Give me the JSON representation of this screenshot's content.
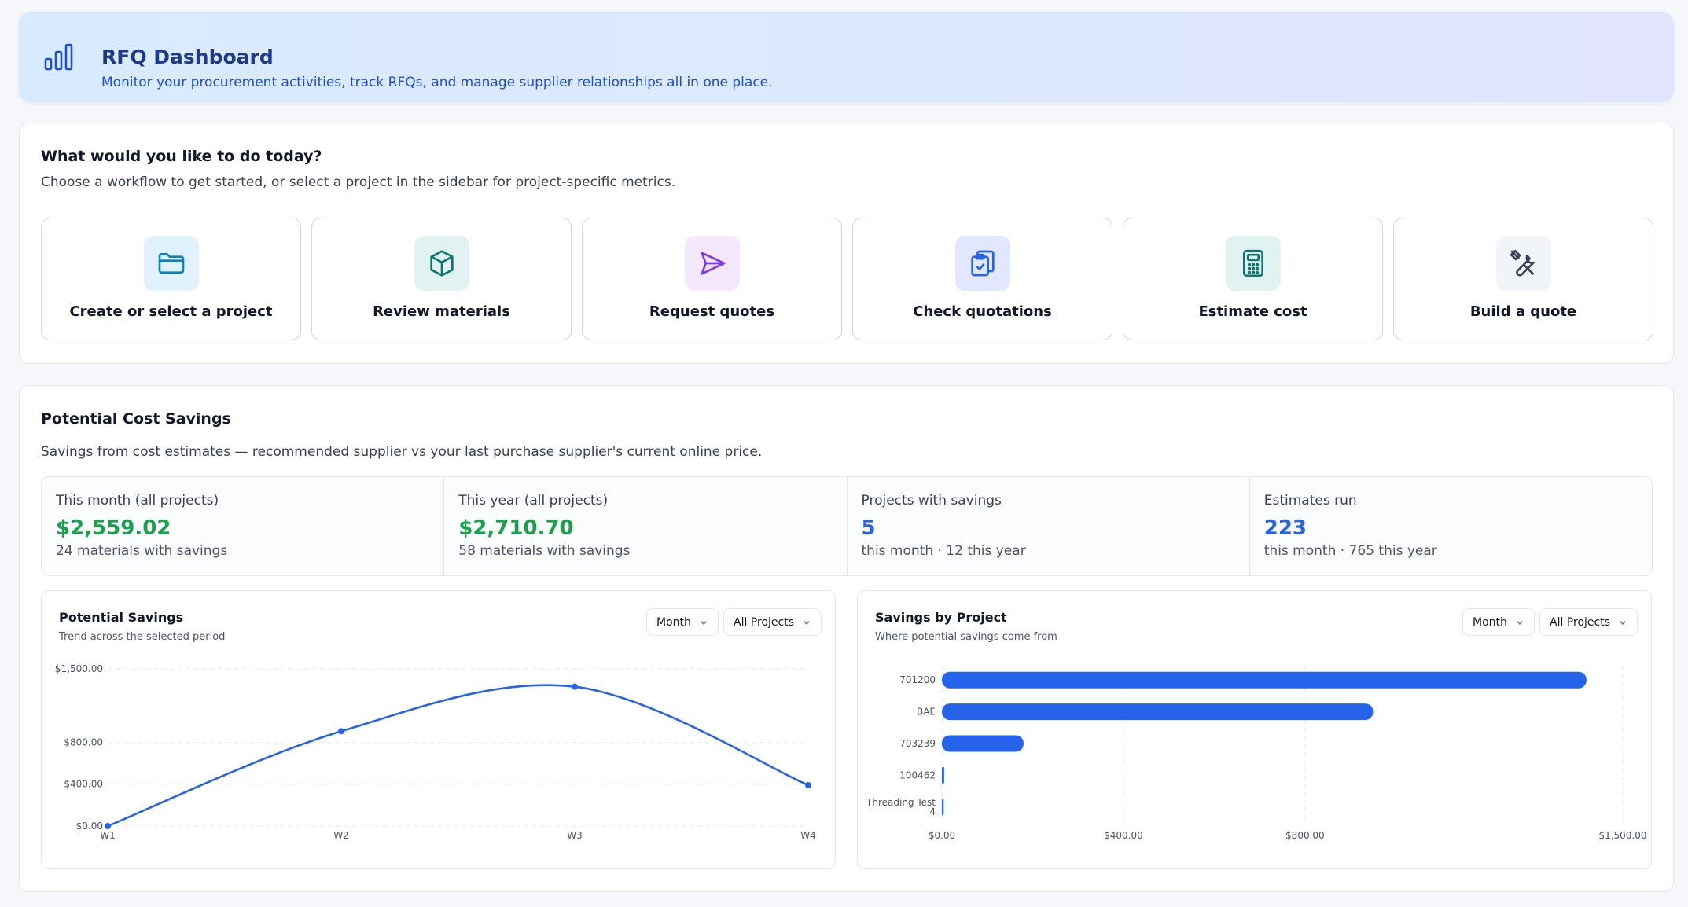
{
  "header": {
    "title": "RFQ Dashboard",
    "subtitle": "Monitor your procurement activities, track RFQs, and manage supplier relationships all in one place."
  },
  "workflow": {
    "heading": "What would you like to do today?",
    "description": "Choose a workflow to get started, or select a project in the sidebar for project-specific metrics.",
    "cards": [
      {
        "label": "Create or select a project",
        "icon": "folder-icon",
        "color": "#0284c7",
        "bg": "#e0f2fe"
      },
      {
        "label": "Review materials",
        "icon": "box-icon",
        "color": "#0f766e",
        "bg": "#e0f2f1"
      },
      {
        "label": "Request quotes",
        "icon": "send-icon",
        "color": "#7c3aed",
        "bg": "#f3e8ff"
      },
      {
        "label": "Check quotations",
        "icon": "clipboard-check-icon",
        "color": "#2563eb",
        "bg": "#e0e7ff"
      },
      {
        "label": "Estimate cost",
        "icon": "calculator-icon",
        "color": "#0f766e",
        "bg": "#e0f2f1"
      },
      {
        "label": "Build a quote",
        "icon": "tools-icon",
        "color": "#374151",
        "bg": "#f1f5f9"
      }
    ]
  },
  "savings": {
    "heading": "Potential Cost Savings",
    "description": "Savings from cost estimates — recommended supplier vs your last purchase supplier's current online price.",
    "stats": [
      {
        "label": "This month (all projects)",
        "value": "$2,559.02",
        "sub": "24 materials with savings",
        "color": "#16a34a"
      },
      {
        "label": "This year (all projects)",
        "value": "$2,710.70",
        "sub": "58 materials with savings",
        "color": "#16a34a"
      },
      {
        "label": "Projects with savings",
        "value": "5",
        "sub": "this month · 12 this year",
        "color": "#2563eb"
      },
      {
        "label": "Estimates run",
        "value": "223",
        "sub": "this month · 765 this year",
        "color": "#2563eb"
      }
    ]
  },
  "charts": {
    "line": {
      "title": "Potential Savings",
      "subtitle": "Trend across the selected period",
      "period": "Month",
      "project": "All Projects"
    },
    "bar": {
      "title": "Savings by Project",
      "subtitle": "Where potential savings come from",
      "period": "Month",
      "project": "All Projects"
    }
  },
  "chart_data": [
    {
      "type": "line",
      "title": "Potential Savings",
      "categories": [
        "W1",
        "W2",
        "W3",
        "W4"
      ],
      "values": [
        0,
        905,
        1330,
        390
      ],
      "yticks": [
        "$0.00",
        "$400.00",
        "$800.00",
        "$1,500.00"
      ],
      "ytick_values": [
        0,
        400,
        800,
        1500
      ],
      "ylim": [
        0,
        1500
      ],
      "grid": true,
      "color": "#2563eb"
    },
    {
      "type": "bar",
      "orientation": "horizontal",
      "title": "Savings by Project",
      "categories": [
        "701200",
        "BAE",
        "703239",
        "100462",
        "Threading Test 4"
      ],
      "values": [
        1420,
        950,
        180,
        5,
        4
      ],
      "xticks": [
        "$0.00",
        "$400.00",
        "$800.00",
        "$1,500.00"
      ],
      "xtick_values": [
        0,
        400,
        800,
        1500
      ],
      "xlim": [
        0,
        1500
      ],
      "grid": true,
      "color": "#2563eb"
    }
  ]
}
